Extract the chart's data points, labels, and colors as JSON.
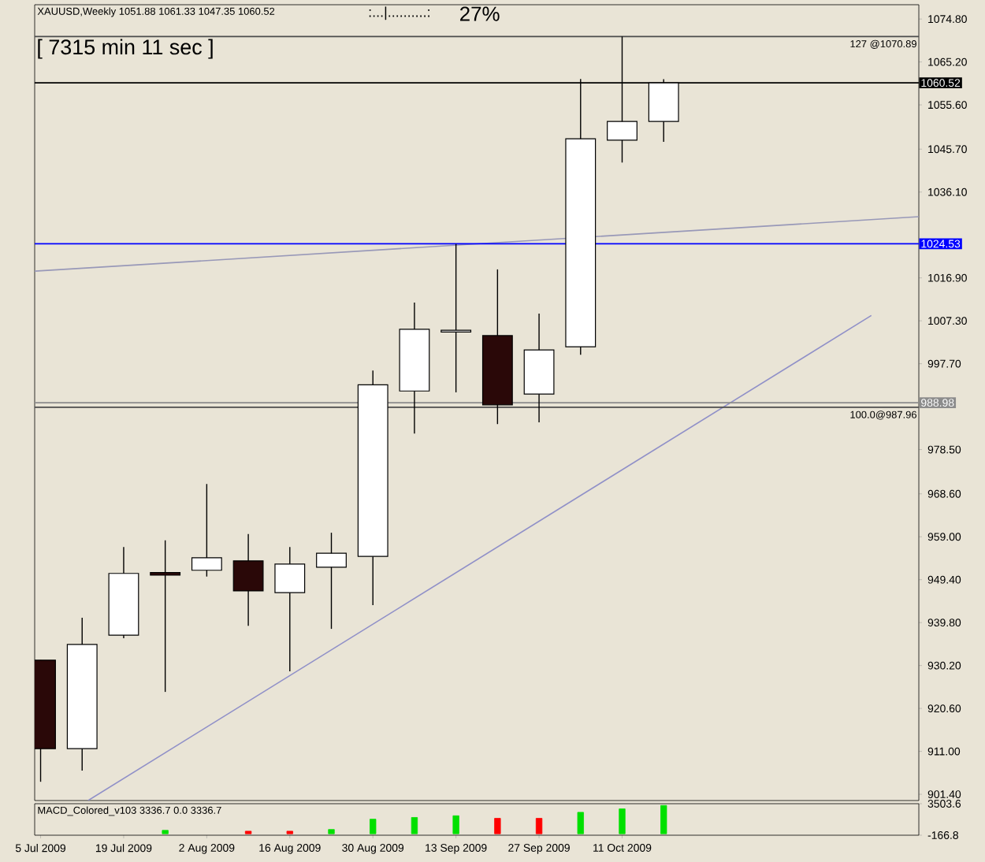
{
  "chart_data": [
    {
      "type": "candlestick",
      "title": "XAUUSD,Weekly 1051.88 1061.33 1047.35 1060.52",
      "annotations": [
        ":...|..........:",
        "27%",
        "[ 7315 min 11 sec ]"
      ],
      "x": [
        "2009-07-05",
        "2009-07-12",
        "2009-07-19",
        "2009-07-26",
        "2009-08-02",
        "2009-08-09",
        "2009-08-16",
        "2009-08-23",
        "2009-08-30",
        "2009-09-06",
        "2009-09-13",
        "2009-09-20",
        "2009-09-27",
        "2009-10-04",
        "2009-10-11",
        "2009-10-18"
      ],
      "ohlc": [
        [
          931.4,
          931.4,
          904.2,
          911.6
        ],
        [
          911.6,
          940.9,
          906.7,
          934.9
        ],
        [
          937.0,
          956.7,
          936.3,
          950.8
        ],
        [
          951.0,
          958.2,
          924.3,
          950.4
        ],
        [
          951.5,
          970.8,
          950.1,
          954.3
        ],
        [
          953.6,
          959.6,
          939.1,
          946.9
        ],
        [
          946.5,
          956.7,
          928.9,
          952.9
        ],
        [
          952.2,
          959.9,
          938.4,
          955.3
        ],
        [
          954.6,
          996.2,
          943.7,
          993.0
        ],
        [
          991.6,
          1011.4,
          982.1,
          1005.4
        ],
        [
          1004.8,
          1024.5,
          991.3,
          1005.2
        ],
        [
          1004.0,
          1018.8,
          984.2,
          988.5
        ],
        [
          990.9,
          1008.9,
          984.6,
          1000.8
        ],
        [
          1001.5,
          1061.4,
          999.7,
          1048.0
        ],
        [
          1047.7,
          1070.89,
          1042.7,
          1051.88
        ],
        [
          1051.88,
          1061.33,
          1047.35,
          1060.52
        ]
      ],
      "series": [
        {
          "type": "line",
          "x": [
            "2009-07-04",
            "2009-11-30"
          ],
          "values": [
            1018.4,
            1030.6
          ],
          "color": "#9898b8"
        },
        {
          "type": "line",
          "x": [
            "2009-07-13",
            "2009-11-22"
          ],
          "values": [
            900.0,
            1008.5
          ],
          "color": "#9090c8"
        }
      ],
      "ref_lines": [
        {
          "axis": "y",
          "value": 1070.89,
          "label": "127 @1070.89"
        },
        {
          "axis": "y",
          "value": 987.96,
          "label": "100.0@987.96"
        },
        {
          "axis": "y",
          "value": 1060.52,
          "label": "1060.52",
          "color": "#000000"
        },
        {
          "axis": "y",
          "value": 1024.53,
          "label": "1024.53",
          "color": "#0000ff"
        },
        {
          "axis": "y",
          "value": 988.98,
          "label": "988.98",
          "color": "#8c8c8c"
        }
      ],
      "xlim": [
        "2009-07-04",
        "2009-11-30"
      ],
      "ylim": [
        900.0,
        1078.0
      ],
      "yticks": [
        {
          "value": 901.4,
          "label": "901.40"
        },
        {
          "value": 911.0,
          "label": "911.00"
        },
        {
          "value": 920.6,
          "label": "920.60"
        },
        {
          "value": 930.2,
          "label": "930.20"
        },
        {
          "value": 939.8,
          "label": "939.80"
        },
        {
          "value": 949.4,
          "label": "949.40"
        },
        {
          "value": 959.0,
          "label": "959.00"
        },
        {
          "value": 968.6,
          "label": "968.60"
        },
        {
          "value": 978.5,
          "label": "978.50"
        },
        {
          "value": 997.7,
          "label": "997.70"
        },
        {
          "value": 1007.3,
          "label": "1007.30"
        },
        {
          "value": 1016.9,
          "label": "1016.90"
        },
        {
          "value": 1036.1,
          "label": "1036.10"
        },
        {
          "value": 1045.7,
          "label": "1045.70"
        },
        {
          "value": 1055.6,
          "label": "1055.60"
        },
        {
          "value": 1065.2,
          "label": "1065.20"
        },
        {
          "value": 1074.8,
          "label": "1074.80"
        }
      ],
      "tick_labels": "y"
    },
    {
      "type": "bar",
      "title": "MACD_Colored_v103 3336.7 0.0 3336.7",
      "x": [
        "2009-07-26",
        "2009-08-09",
        "2009-08-16",
        "2009-08-23",
        "2009-08-30",
        "2009-09-06",
        "2009-09-13",
        "2009-09-20",
        "2009-09-27",
        "2009-10-04",
        "2009-10-11",
        "2009-10-18"
      ],
      "values": [
        400,
        300,
        300,
        500,
        1700,
        1900,
        2100,
        1800,
        1800,
        2500,
        2900,
        3300
      ],
      "colors": [
        "#00e000",
        "#ff0000",
        "#ff0000",
        "#00e000",
        "#00e000",
        "#00e000",
        "#00e000",
        "#ff0000",
        "#ff0000",
        "#00e000",
        "#00e000",
        "#00e000"
      ],
      "xlim": [
        "2009-07-04",
        "2009-11-30"
      ],
      "ylim": [
        -166.8,
        3503.6
      ],
      "yticks": [
        -166.8,
        3503.6
      ],
      "xticks": [
        {
          "value": "2009-07-05",
          "label": "5 Jul 2009"
        },
        {
          "value": "2009-07-19",
          "label": "19 Jul 2009"
        },
        {
          "value": "2009-08-02",
          "label": "2 Aug 2009"
        },
        {
          "value": "2009-08-16",
          "label": "16 Aug 2009"
        },
        {
          "value": "2009-08-30",
          "label": "30 Aug 2009"
        },
        {
          "value": "2009-09-13",
          "label": "13 Sep 2009"
        },
        {
          "value": "2009-09-27",
          "label": "27 Sep 2009"
        },
        {
          "value": "2009-10-11",
          "label": "11 Oct 2009"
        }
      ]
    }
  ]
}
